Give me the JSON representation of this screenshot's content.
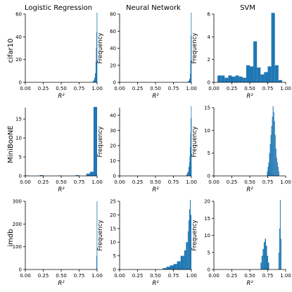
{
  "column_titles": [
    "Logistic Regression",
    "Neural Network",
    "SVM"
  ],
  "row_labels": [
    "cifar10",
    "MiniBooNE",
    "imdb"
  ],
  "colors": {
    "bar": "#1f77b4",
    "axis": "#000000"
  },
  "chart_data": [
    {
      "type": "bar",
      "ylabel": "",
      "xlabel": "R²",
      "xlim": [
        0,
        1
      ],
      "ylim": [
        0,
        60
      ],
      "xticks": [
        "0.00",
        "0.25",
        "0.50",
        "0.75",
        "1.00"
      ],
      "yticks": [
        0,
        20,
        40,
        60
      ],
      "bins": [
        [
          0.94,
          0.95,
          1
        ],
        [
          0.95,
          0.96,
          2
        ],
        [
          0.96,
          0.97,
          4
        ],
        [
          0.97,
          0.98,
          8
        ],
        [
          0.98,
          0.985,
          18
        ],
        [
          0.985,
          0.99,
          30
        ],
        [
          0.99,
          0.995,
          44
        ],
        [
          0.995,
          1.0,
          62
        ]
      ]
    },
    {
      "type": "bar",
      "ylabel": "Frequency",
      "xlabel": "R²",
      "xlim": [
        0,
        1
      ],
      "ylim": [
        0,
        80
      ],
      "xticks": [
        "0.00",
        "0.25",
        "0.50",
        "0.75",
        "1.00"
      ],
      "yticks": [
        0,
        20,
        40,
        60,
        80
      ],
      "bins": [
        [
          0.95,
          0.96,
          1
        ],
        [
          0.96,
          0.97,
          2
        ],
        [
          0.97,
          0.98,
          4
        ],
        [
          0.98,
          0.985,
          10
        ],
        [
          0.985,
          0.99,
          25
        ],
        [
          0.99,
          0.995,
          55
        ],
        [
          0.995,
          1.0,
          83
        ]
      ]
    },
    {
      "type": "bar",
      "ylabel": "Frequency",
      "xlabel": "R²",
      "xlim": [
        0,
        1
      ],
      "ylim": [
        0,
        6
      ],
      "xticks": [
        "0.00",
        "0.25",
        "0.50",
        "0.75",
        "1.00"
      ],
      "yticks": [
        0,
        2,
        4,
        6
      ],
      "bins": [
        [
          0.05,
          0.1,
          0.6
        ],
        [
          0.1,
          0.15,
          0.6
        ],
        [
          0.15,
          0.2,
          0.4
        ],
        [
          0.2,
          0.25,
          0.6
        ],
        [
          0.25,
          0.3,
          0.5
        ],
        [
          0.3,
          0.35,
          0.6
        ],
        [
          0.35,
          0.4,
          0.5
        ],
        [
          0.4,
          0.45,
          0.4
        ],
        [
          0.45,
          0.5,
          1.5
        ],
        [
          0.5,
          0.55,
          1.4
        ],
        [
          0.55,
          0.6,
          3.6
        ],
        [
          0.6,
          0.65,
          1.3
        ],
        [
          0.65,
          0.7,
          0.7
        ],
        [
          0.7,
          0.75,
          0.9
        ],
        [
          0.75,
          0.8,
          1.4
        ],
        [
          0.8,
          0.85,
          6.1
        ],
        [
          0.85,
          0.9,
          1.5
        ],
        [
          0.9,
          0.95,
          0.2
        ]
      ]
    },
    {
      "type": "bar",
      "ylabel": "",
      "xlabel": "R²",
      "xlim": [
        0,
        1
      ],
      "ylim": [
        0,
        18
      ],
      "xticks": [
        "0.00",
        "0.25",
        "0.50",
        "0.75",
        "1.00"
      ],
      "yticks": [
        0,
        5,
        10,
        15
      ],
      "bins": [
        [
          0.0,
          0.05,
          0.1
        ],
        [
          0.2,
          0.25,
          0.2
        ],
        [
          0.45,
          0.5,
          0.1
        ],
        [
          0.7,
          0.75,
          0.2
        ],
        [
          0.85,
          0.9,
          0.6
        ],
        [
          0.9,
          0.95,
          1.1
        ],
        [
          0.95,
          1.0,
          18.2
        ]
      ]
    },
    {
      "type": "bar",
      "ylabel": "Frequency",
      "xlabel": "R²",
      "xlim": [
        0,
        1
      ],
      "ylim": [
        0,
        45
      ],
      "xticks": [
        "0.00",
        "0.25",
        "0.50",
        "0.75",
        "1.00"
      ],
      "yticks": [
        0,
        10,
        20,
        30,
        40
      ],
      "bins": [
        [
          0.93,
          0.94,
          1
        ],
        [
          0.94,
          0.95,
          2
        ],
        [
          0.95,
          0.96,
          3
        ],
        [
          0.96,
          0.97,
          6
        ],
        [
          0.97,
          0.975,
          9
        ],
        [
          0.975,
          0.98,
          13
        ],
        [
          0.98,
          0.985,
          19
        ],
        [
          0.985,
          0.99,
          28
        ],
        [
          0.99,
          0.995,
          38
        ],
        [
          0.995,
          1.0,
          47
        ]
      ]
    },
    {
      "type": "bar",
      "ylabel": "Frequency",
      "xlabel": "R²",
      "xlim": [
        0,
        1
      ],
      "ylim": [
        0,
        15
      ],
      "xticks": [
        "0.00",
        "0.25",
        "0.50",
        "0.75",
        "1.00"
      ],
      "yticks": [
        0,
        5,
        10,
        15
      ],
      "bins": [
        [
          0.74,
          0.75,
          1
        ],
        [
          0.75,
          0.76,
          2
        ],
        [
          0.76,
          0.77,
          3
        ],
        [
          0.77,
          0.78,
          5
        ],
        [
          0.78,
          0.79,
          7
        ],
        [
          0.79,
          0.8,
          9
        ],
        [
          0.8,
          0.81,
          11
        ],
        [
          0.81,
          0.82,
          13
        ],
        [
          0.82,
          0.83,
          15.5
        ],
        [
          0.83,
          0.84,
          14
        ],
        [
          0.84,
          0.85,
          12
        ],
        [
          0.85,
          0.86,
          9
        ],
        [
          0.86,
          0.87,
          6
        ],
        [
          0.87,
          0.88,
          4
        ],
        [
          0.88,
          0.89,
          3
        ],
        [
          0.89,
          0.9,
          2
        ],
        [
          0.9,
          0.91,
          1
        ]
      ]
    },
    {
      "type": "bar",
      "ylabel": "",
      "xlabel": "R²",
      "xlim": [
        0,
        1
      ],
      "ylim": [
        0,
        300
      ],
      "xticks": [
        "0.00",
        "0.25",
        "0.50",
        "0.75",
        "1.00"
      ],
      "yticks": [
        0,
        100,
        200,
        300
      ],
      "bins": [
        [
          0.985,
          0.99,
          5
        ],
        [
          0.99,
          0.995,
          60
        ],
        [
          0.995,
          1.0,
          300
        ]
      ]
    },
    {
      "type": "bar",
      "ylabel": "Frequency",
      "xlabel": "R²",
      "xlim": [
        0,
        1
      ],
      "ylim": [
        0,
        25
      ],
      "xticks": [
        "0.00",
        "0.25",
        "0.50",
        "0.75",
        "1.00"
      ],
      "yticks": [
        0,
        5,
        10,
        15,
        20,
        25
      ],
      "bins": [
        [
          0.6,
          0.65,
          0.5
        ],
        [
          0.65,
          0.7,
          1
        ],
        [
          0.7,
          0.75,
          1.5
        ],
        [
          0.75,
          0.8,
          2
        ],
        [
          0.8,
          0.85,
          3
        ],
        [
          0.85,
          0.9,
          5
        ],
        [
          0.9,
          0.925,
          7
        ],
        [
          0.925,
          0.95,
          10
        ],
        [
          0.95,
          0.96,
          14
        ],
        [
          0.96,
          0.97,
          18
        ],
        [
          0.97,
          0.98,
          22
        ],
        [
          0.98,
          0.99,
          26
        ],
        [
          0.99,
          1.0,
          20
        ]
      ]
    },
    {
      "type": "bar",
      "ylabel": "Frequency",
      "xlabel": "R²",
      "xlim": [
        0,
        1
      ],
      "ylim": [
        0,
        20
      ],
      "xticks": [
        "0.00",
        "0.25",
        "0.50",
        "0.75",
        "1.00"
      ],
      "yticks": [
        0,
        5,
        10,
        15,
        20
      ],
      "bins": [
        [
          0.65,
          0.665,
          2
        ],
        [
          0.665,
          0.68,
          4
        ],
        [
          0.68,
          0.695,
          6
        ],
        [
          0.695,
          0.71,
          8
        ],
        [
          0.71,
          0.725,
          9
        ],
        [
          0.725,
          0.74,
          7
        ],
        [
          0.74,
          0.755,
          4
        ],
        [
          0.755,
          0.77,
          2
        ],
        [
          0.9,
          0.91,
          5
        ],
        [
          0.91,
          0.92,
          12
        ],
        [
          0.92,
          0.93,
          21
        ],
        [
          0.93,
          0.94,
          9
        ]
      ]
    }
  ]
}
